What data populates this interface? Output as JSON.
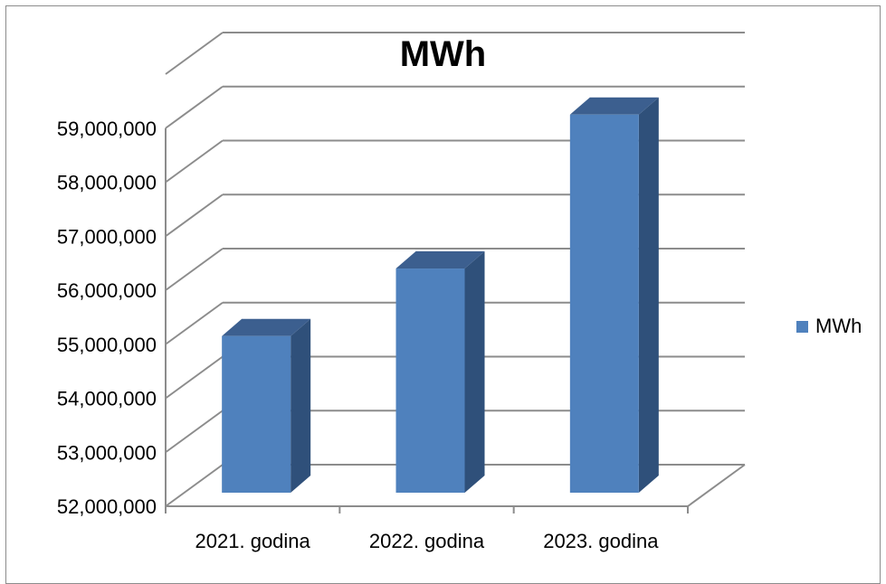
{
  "chart_data": {
    "type": "bar",
    "title": "MWh",
    "categories": [
      "2021. godina",
      "2022. godina",
      "2023. godina"
    ],
    "series": [
      {
        "name": "MWh",
        "values": [
          54900000,
          56150000,
          59000000
        ]
      }
    ],
    "ylim": [
      52000000,
      60000000
    ],
    "yticks": [
      "52,000,000",
      "53,000,000",
      "54,000,000",
      "55,000,000",
      "56,000,000",
      "57,000,000",
      "58,000,000",
      "59,000,000"
    ],
    "ytick_values": [
      52000000,
      53000000,
      54000000,
      55000000,
      56000000,
      57000000,
      58000000,
      59000000
    ],
    "grid": true,
    "legend": "right",
    "style": "3d-column",
    "colors": {
      "bar_front": "#4f81bd",
      "bar_side": "#2f507a",
      "bar_top": "#3c5f8f",
      "grid": "#8c8c8c"
    }
  }
}
